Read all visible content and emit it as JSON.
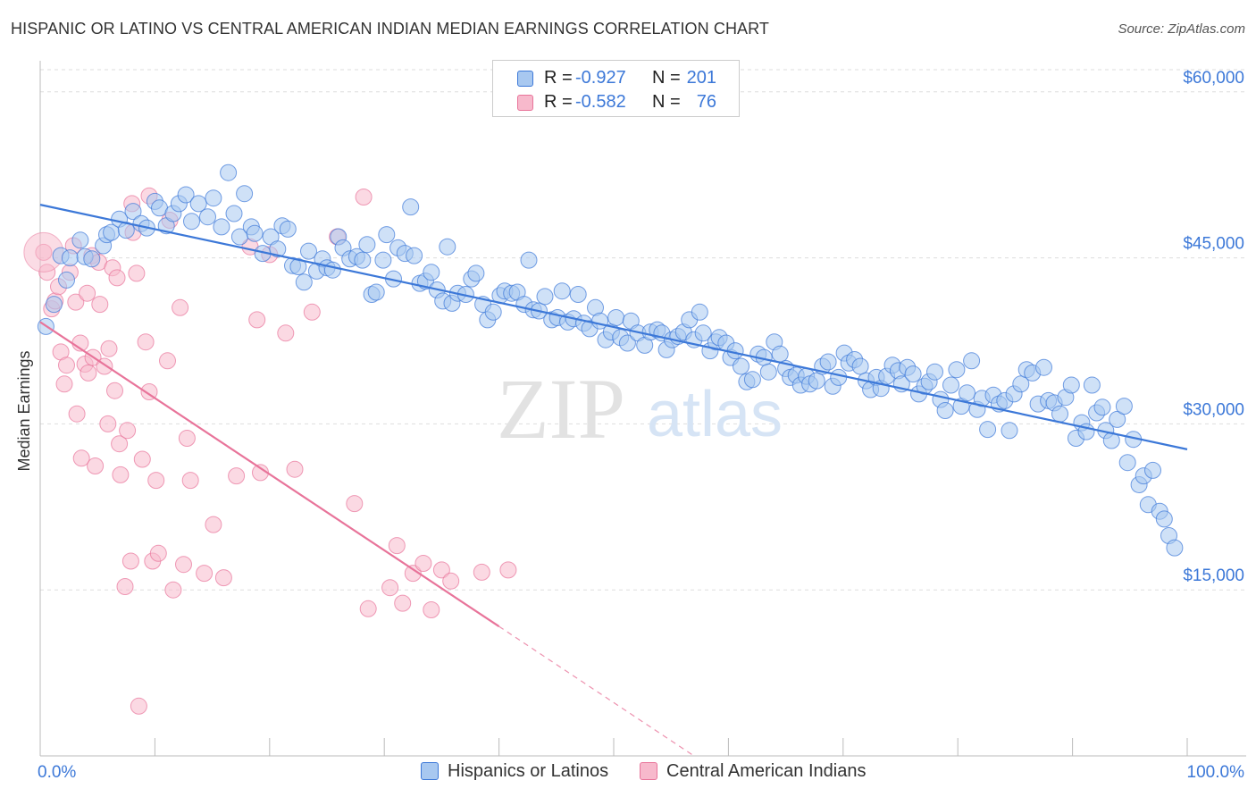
{
  "title": "HISPANIC OR LATINO VS CENTRAL AMERICAN INDIAN MEDIAN EARNINGS CORRELATION CHART",
  "source": "Source: ZipAtlas.com",
  "watermark": {
    "zip": "ZIP",
    "atlas": "atlas"
  },
  "colors": {
    "blue": "#3c78d8",
    "blue_fill": "#a8c8f0",
    "pink": "#e8749a",
    "pink_fill": "#f7b9cc",
    "axis_label": "#3c78d8",
    "grid": "#dddddd"
  },
  "legend": {
    "rows": [
      {
        "r_label": "R =",
        "r_value": "-0.927",
        "n_label": "N =",
        "n_value": "201"
      },
      {
        "r_label": "R =",
        "r_value": "-0.582",
        "n_label": "N =",
        "n_value": "76"
      }
    ]
  },
  "bottom_legend": {
    "series1": "Hispanics or Latinos",
    "series2": "Central American Indians"
  },
  "chart_data": {
    "type": "scatter",
    "title": "HISPANIC OR LATINO VS CENTRAL AMERICAN INDIAN MEDIAN EARNINGS CORRELATION CHART",
    "xlabel": "",
    "ylabel": "Median Earnings",
    "x_tick_labels": [
      "0.0%",
      "100.0%"
    ],
    "y_tick_labels": [
      "$15,000",
      "$30,000",
      "$45,000",
      "$60,000"
    ],
    "y_ticks": [
      15000,
      30000,
      45000,
      60000
    ],
    "xlim": [
      0,
      100
    ],
    "ylim": [
      0,
      62000
    ],
    "grid": true,
    "legend_position": "top-center",
    "series": [
      {
        "name": "Hispanics or Latinos",
        "color": "#3c78d8",
        "fill": "#a8c8f0",
        "trend": {
          "x": [
            0,
            100
          ],
          "y": [
            49800,
            27700
          ],
          "style": "solid"
        },
        "points": [
          [
            0.5,
            38800
          ],
          [
            1.2,
            40800
          ],
          [
            1.8,
            45200
          ],
          [
            2.3,
            43000
          ],
          [
            2.6,
            45000
          ],
          [
            3.5,
            46600
          ],
          [
            3.9,
            45100
          ],
          [
            4.5,
            44900
          ],
          [
            5.5,
            46100
          ],
          [
            5.8,
            47100
          ],
          [
            6.2,
            47300
          ],
          [
            6.9,
            48500
          ],
          [
            7.5,
            47500
          ],
          [
            8.1,
            49200
          ],
          [
            8.8,
            48100
          ],
          [
            9.3,
            47700
          ],
          [
            10.0,
            50100
          ],
          [
            10.4,
            49500
          ],
          [
            11.0,
            47900
          ],
          [
            11.6,
            49000
          ],
          [
            12.1,
            49900
          ],
          [
            12.7,
            50700
          ],
          [
            13.2,
            48300
          ],
          [
            13.8,
            49900
          ],
          [
            14.6,
            48700
          ],
          [
            15.1,
            50400
          ],
          [
            15.8,
            47800
          ],
          [
            16.4,
            52700
          ],
          [
            16.9,
            49000
          ],
          [
            17.4,
            46900
          ],
          [
            17.8,
            50800
          ],
          [
            18.4,
            47800
          ],
          [
            18.7,
            47200
          ],
          [
            19.4,
            45400
          ],
          [
            20.1,
            46900
          ],
          [
            20.7,
            45800
          ],
          [
            21.1,
            47900
          ],
          [
            21.6,
            47600
          ],
          [
            22.0,
            44300
          ],
          [
            22.5,
            44200
          ],
          [
            23.0,
            42800
          ],
          [
            23.4,
            45600
          ],
          [
            24.1,
            43800
          ],
          [
            24.6,
            44900
          ],
          [
            25.0,
            44100
          ],
          [
            25.5,
            43900
          ],
          [
            26.0,
            46900
          ],
          [
            26.4,
            45900
          ],
          [
            27.0,
            44900
          ],
          [
            27.6,
            45100
          ],
          [
            28.1,
            44800
          ],
          [
            28.5,
            46200
          ],
          [
            28.9,
            41700
          ],
          [
            29.3,
            41900
          ],
          [
            29.9,
            44800
          ],
          [
            30.2,
            47100
          ],
          [
            30.8,
            43100
          ],
          [
            31.2,
            45900
          ],
          [
            31.8,
            45400
          ],
          [
            32.3,
            49600
          ],
          [
            32.6,
            45200
          ],
          [
            33.1,
            42700
          ],
          [
            33.6,
            42900
          ],
          [
            34.1,
            43700
          ],
          [
            34.6,
            42100
          ],
          [
            35.1,
            41100
          ],
          [
            35.5,
            46000
          ],
          [
            35.9,
            40900
          ],
          [
            36.4,
            41800
          ],
          [
            37.1,
            41700
          ],
          [
            37.6,
            43100
          ],
          [
            38.0,
            43600
          ],
          [
            38.6,
            40800
          ],
          [
            39.0,
            39400
          ],
          [
            39.5,
            40100
          ],
          [
            40.1,
            41600
          ],
          [
            40.5,
            42000
          ],
          [
            41.1,
            41800
          ],
          [
            41.6,
            41900
          ],
          [
            42.2,
            40800
          ],
          [
            42.6,
            44800
          ],
          [
            43.0,
            40300
          ],
          [
            43.5,
            40200
          ],
          [
            44.0,
            41500
          ],
          [
            44.6,
            39400
          ],
          [
            45.1,
            39600
          ],
          [
            45.5,
            42000
          ],
          [
            46.0,
            39200
          ],
          [
            46.5,
            39500
          ],
          [
            46.9,
            41700
          ],
          [
            47.4,
            39100
          ],
          [
            47.9,
            38600
          ],
          [
            48.4,
            40500
          ],
          [
            48.8,
            39300
          ],
          [
            49.3,
            37600
          ],
          [
            49.8,
            38300
          ],
          [
            50.2,
            39600
          ],
          [
            50.6,
            37800
          ],
          [
            51.2,
            37300
          ],
          [
            51.5,
            39300
          ],
          [
            52.1,
            38200
          ],
          [
            52.7,
            37100
          ],
          [
            53.2,
            38300
          ],
          [
            53.8,
            38500
          ],
          [
            54.2,
            38200
          ],
          [
            54.6,
            36700
          ],
          [
            55.1,
            37600
          ],
          [
            55.6,
            37900
          ],
          [
            56.1,
            38300
          ],
          [
            56.6,
            39400
          ],
          [
            57.0,
            37600
          ],
          [
            57.5,
            40100
          ],
          [
            57.8,
            38200
          ],
          [
            58.4,
            36600
          ],
          [
            58.9,
            37400
          ],
          [
            59.2,
            37800
          ],
          [
            59.8,
            37300
          ],
          [
            60.2,
            36000
          ],
          [
            60.6,
            36600
          ],
          [
            61.1,
            35200
          ],
          [
            61.6,
            33800
          ],
          [
            62.1,
            34000
          ],
          [
            62.6,
            36300
          ],
          [
            63.1,
            36000
          ],
          [
            63.5,
            34700
          ],
          [
            64.0,
            37400
          ],
          [
            64.5,
            36300
          ],
          [
            65.0,
            35000
          ],
          [
            65.4,
            34200
          ],
          [
            65.9,
            34400
          ],
          [
            66.3,
            33500
          ],
          [
            66.8,
            34300
          ],
          [
            67.1,
            33600
          ],
          [
            67.7,
            33900
          ],
          [
            68.2,
            35200
          ],
          [
            68.7,
            35600
          ],
          [
            69.1,
            33400
          ],
          [
            69.6,
            34200
          ],
          [
            70.1,
            36400
          ],
          [
            70.5,
            35500
          ],
          [
            71.0,
            35800
          ],
          [
            71.5,
            35200
          ],
          [
            72.0,
            33900
          ],
          [
            72.4,
            33100
          ],
          [
            72.9,
            34200
          ],
          [
            73.3,
            33200
          ],
          [
            73.8,
            34300
          ],
          [
            74.3,
            35300
          ],
          [
            74.8,
            34800
          ],
          [
            75.1,
            33600
          ],
          [
            75.6,
            35100
          ],
          [
            76.1,
            34500
          ],
          [
            76.6,
            32700
          ],
          [
            77.1,
            33400
          ],
          [
            77.5,
            33800
          ],
          [
            78.0,
            34700
          ],
          [
            78.5,
            32200
          ],
          [
            78.9,
            31200
          ],
          [
            79.4,
            33500
          ],
          [
            79.9,
            34900
          ],
          [
            80.3,
            31600
          ],
          [
            80.8,
            32800
          ],
          [
            81.2,
            35700
          ],
          [
            81.7,
            31300
          ],
          [
            82.1,
            32300
          ],
          [
            82.6,
            29500
          ],
          [
            83.1,
            32600
          ],
          [
            83.6,
            31800
          ],
          [
            84.1,
            32100
          ],
          [
            84.5,
            29400
          ],
          [
            84.9,
            32700
          ],
          [
            85.5,
            33600
          ],
          [
            86.0,
            34900
          ],
          [
            86.5,
            34600
          ],
          [
            87.0,
            31800
          ],
          [
            87.5,
            35100
          ],
          [
            87.9,
            32100
          ],
          [
            88.4,
            31900
          ],
          [
            88.9,
            30900
          ],
          [
            89.4,
            32400
          ],
          [
            89.9,
            33500
          ],
          [
            90.3,
            28700
          ],
          [
            90.8,
            30100
          ],
          [
            91.2,
            29300
          ],
          [
            91.7,
            33500
          ],
          [
            92.1,
            31000
          ],
          [
            92.6,
            31500
          ],
          [
            92.9,
            29400
          ],
          [
            93.4,
            28500
          ],
          [
            93.9,
            30400
          ],
          [
            94.5,
            31600
          ],
          [
            94.8,
            26500
          ],
          [
            95.3,
            28600
          ],
          [
            95.8,
            24500
          ],
          [
            96.2,
            25300
          ],
          [
            96.6,
            22700
          ],
          [
            97.0,
            25800
          ],
          [
            97.6,
            22100
          ],
          [
            98.0,
            21400
          ],
          [
            98.4,
            19900
          ],
          [
            98.9,
            18800
          ]
        ]
      },
      {
        "name": "Central American Indians",
        "color": "#e8749a",
        "fill": "#f7b9cc",
        "trend": {
          "x": [
            0,
            40
          ],
          "y": [
            39200,
            11700
          ],
          "style": "solid",
          "extension": {
            "x": [
              40,
              57
            ],
            "y": [
              11700,
              0
            ],
            "style": "dashed"
          }
        },
        "points": [
          [
            0.3,
            45500
          ],
          [
            0.6,
            43700
          ],
          [
            1.0,
            40400
          ],
          [
            1.3,
            41100
          ],
          [
            1.6,
            42400
          ],
          [
            1.8,
            36500
          ],
          [
            2.1,
            33600
          ],
          [
            2.3,
            35300
          ],
          [
            2.6,
            43700
          ],
          [
            2.9,
            46100
          ],
          [
            3.1,
            41000
          ],
          [
            3.2,
            30900
          ],
          [
            3.5,
            37300
          ],
          [
            3.6,
            26900
          ],
          [
            3.9,
            35400
          ],
          [
            4.1,
            41800
          ],
          [
            4.2,
            34600
          ],
          [
            4.5,
            45200
          ],
          [
            4.6,
            36000
          ],
          [
            4.8,
            26200
          ],
          [
            5.1,
            44600
          ],
          [
            5.2,
            40800
          ],
          [
            5.6,
            35200
          ],
          [
            5.9,
            30000
          ],
          [
            6.0,
            36800
          ],
          [
            6.3,
            44100
          ],
          [
            6.5,
            33000
          ],
          [
            6.7,
            43200
          ],
          [
            6.9,
            28200
          ],
          [
            7.0,
            25400
          ],
          [
            7.4,
            15300
          ],
          [
            7.6,
            29400
          ],
          [
            7.9,
            17600
          ],
          [
            8.1,
            47300
          ],
          [
            8.4,
            43600
          ],
          [
            8.6,
            4500
          ],
          [
            8.9,
            26800
          ],
          [
            9.2,
            37400
          ],
          [
            9.5,
            32900
          ],
          [
            9.8,
            17600
          ],
          [
            10.1,
            24900
          ],
          [
            10.3,
            18300
          ],
          [
            11.1,
            35700
          ],
          [
            11.6,
            15000
          ],
          [
            12.2,
            40500
          ],
          [
            12.5,
            17300
          ],
          [
            12.8,
            28700
          ],
          [
            13.1,
            24900
          ],
          [
            14.3,
            16500
          ],
          [
            15.1,
            20900
          ],
          [
            16.0,
            16100
          ],
          [
            17.1,
            25300
          ],
          [
            18.3,
            46000
          ],
          [
            18.9,
            39400
          ],
          [
            19.2,
            25600
          ],
          [
            20.0,
            45300
          ],
          [
            21.4,
            38200
          ],
          [
            22.2,
            25900
          ],
          [
            23.7,
            40100
          ],
          [
            25.9,
            46900
          ],
          [
            27.4,
            22800
          ],
          [
            28.2,
            50500
          ],
          [
            28.6,
            13300
          ],
          [
            30.5,
            15200
          ],
          [
            31.1,
            19000
          ],
          [
            31.6,
            13800
          ],
          [
            32.5,
            16500
          ],
          [
            33.4,
            17400
          ],
          [
            34.1,
            13200
          ],
          [
            35.0,
            16800
          ],
          [
            35.8,
            15800
          ],
          [
            38.5,
            16600
          ],
          [
            40.8,
            16800
          ],
          [
            8.0,
            49900
          ],
          [
            9.5,
            50600
          ],
          [
            11.3,
            48400
          ]
        ]
      }
    ]
  }
}
